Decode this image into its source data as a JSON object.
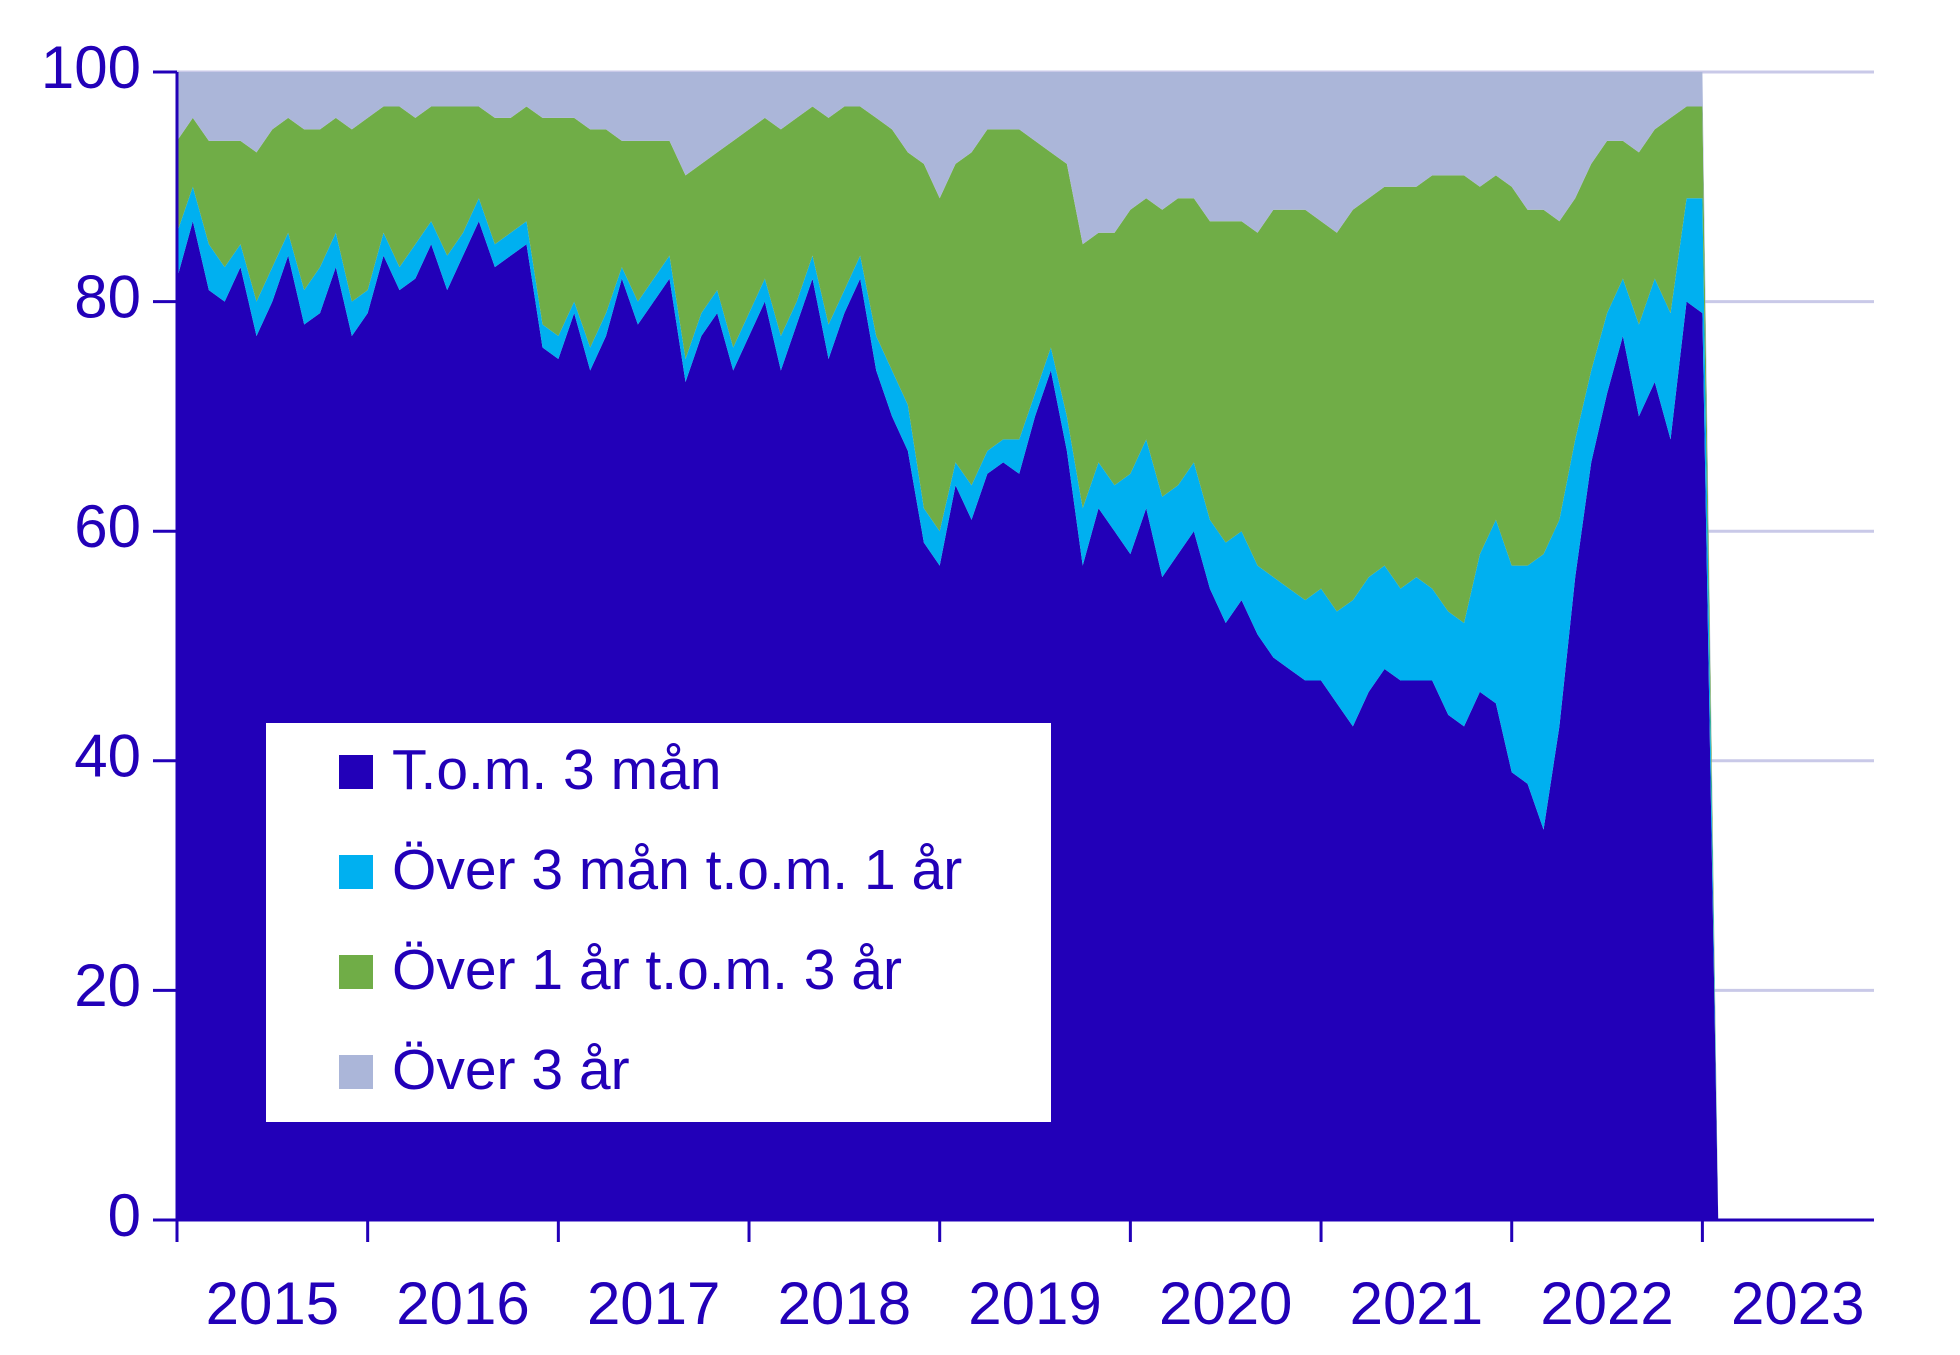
{
  "chart_data": {
    "type": "stacked_area",
    "x": [
      2015,
      2015.083,
      2015.167,
      2015.25,
      2015.333,
      2015.417,
      2015.5,
      2015.583,
      2015.667,
      2015.75,
      2015.833,
      2015.917,
      2016,
      2016.083,
      2016.167,
      2016.25,
      2016.333,
      2016.417,
      2016.5,
      2016.583,
      2016.667,
      2016.75,
      2016.833,
      2016.917,
      2017,
      2017.083,
      2017.167,
      2017.25,
      2017.333,
      2017.417,
      2017.5,
      2017.583,
      2017.667,
      2017.75,
      2017.833,
      2017.917,
      2018,
      2018.083,
      2018.167,
      2018.25,
      2018.333,
      2018.417,
      2018.5,
      2018.583,
      2018.667,
      2018.75,
      2018.833,
      2018.917,
      2019,
      2019.083,
      2019.167,
      2019.25,
      2019.333,
      2019.417,
      2019.5,
      2019.583,
      2019.667,
      2019.75,
      2019.833,
      2019.917,
      2020,
      2020.083,
      2020.167,
      2020.25,
      2020.333,
      2020.417,
      2020.5,
      2020.583,
      2020.667,
      2020.75,
      2020.833,
      2020.917,
      2021,
      2021.083,
      2021.167,
      2021.25,
      2021.333,
      2021.417,
      2021.5,
      2021.583,
      2021.667,
      2021.75,
      2021.833,
      2021.917,
      2022,
      2022.083,
      2022.167,
      2022.25,
      2022.333,
      2022.417,
      2022.5,
      2022.583,
      2022.667,
      2022.75,
      2022.833,
      2022.917,
      2023,
      2023.083
    ],
    "series": [
      {
        "name": "T.o.m. 3 mån",
        "color": "#2200b8",
        "values": [
          82,
          87,
          81,
          80,
          83,
          77,
          80,
          84,
          78,
          79,
          83,
          77,
          79,
          84,
          81,
          82,
          85,
          81,
          84,
          87,
          83,
          84,
          85,
          76,
          75,
          79,
          74,
          77,
          82,
          78,
          80,
          82,
          73,
          77,
          79,
          74,
          77,
          80,
          74,
          78,
          82,
          75,
          79,
          82,
          74,
          70,
          67,
          59,
          57,
          64,
          61,
          65,
          66,
          65,
          70,
          74,
          67,
          57,
          62,
          60,
          58,
          62,
          56,
          58,
          60,
          55,
          52,
          54,
          51,
          49,
          48,
          47,
          47,
          45,
          43,
          46,
          48,
          47,
          47,
          47,
          44,
          43,
          46,
          45,
          39,
          38,
          34,
          43,
          56,
          66,
          72,
          77,
          70,
          73,
          68,
          80,
          79,
          0
        ]
      },
      {
        "name": "Över 3 mån t.o.m. 1 år",
        "color": "#00b0f0",
        "values": [
          4,
          3,
          4,
          3,
          2,
          3,
          3,
          2,
          3,
          4,
          3,
          3,
          2,
          2,
          2,
          3,
          2,
          3,
          2,
          2,
          2,
          2,
          2,
          2,
          2,
          1,
          2,
          2,
          1,
          2,
          2,
          2,
          2,
          2,
          2,
          2,
          2,
          2,
          3,
          2,
          2,
          3,
          2,
          2,
          3,
          4,
          4,
          3,
          3,
          2,
          3,
          2,
          2,
          3,
          2,
          2,
          3,
          5,
          4,
          4,
          7,
          6,
          7,
          6,
          6,
          6,
          7,
          6,
          6,
          7,
          7,
          7,
          8,
          8,
          11,
          10,
          9,
          8,
          9,
          8,
          9,
          9,
          12,
          16,
          18,
          19,
          24,
          18,
          12,
          8,
          7,
          5,
          8,
          9,
          11,
          9,
          10,
          0
        ]
      },
      {
        "name": "Över 1 år t.o.m. 3 år",
        "color": "#70ad47",
        "values": [
          8,
          6,
          9,
          11,
          9,
          13,
          12,
          10,
          14,
          12,
          10,
          15,
          15,
          11,
          14,
          11,
          10,
          13,
          11,
          8,
          11,
          10,
          10,
          18,
          19,
          16,
          19,
          16,
          11,
          14,
          12,
          10,
          16,
          13,
          12,
          18,
          16,
          14,
          18,
          16,
          13,
          18,
          16,
          13,
          19,
          21,
          22,
          30,
          29,
          26,
          29,
          28,
          27,
          27,
          22,
          17,
          22,
          23,
          20,
          22,
          23,
          21,
          25,
          25,
          23,
          26,
          28,
          27,
          29,
          32,
          33,
          34,
          32,
          33,
          34,
          33,
          33,
          35,
          34,
          36,
          38,
          39,
          32,
          30,
          33,
          31,
          30,
          26,
          21,
          18,
          15,
          12,
          15,
          13,
          17,
          8,
          8,
          0
        ]
      },
      {
        "name": "Över 3 år",
        "color": "#abb6d9",
        "values": [
          6,
          4,
          6,
          6,
          6,
          7,
          5,
          4,
          5,
          5,
          4,
          5,
          4,
          3,
          3,
          4,
          3,
          3,
          3,
          3,
          4,
          4,
          3,
          4,
          4,
          4,
          5,
          5,
          6,
          6,
          6,
          6,
          9,
          8,
          7,
          6,
          5,
          4,
          5,
          4,
          3,
          4,
          3,
          3,
          4,
          5,
          7,
          8,
          11,
          8,
          7,
          5,
          5,
          5,
          6,
          7,
          8,
          15,
          14,
          14,
          12,
          11,
          12,
          11,
          11,
          13,
          13,
          13,
          14,
          12,
          12,
          12,
          13,
          14,
          12,
          11,
          10,
          10,
          10,
          9,
          9,
          9,
          10,
          9,
          10,
          12,
          12,
          13,
          11,
          8,
          6,
          6,
          7,
          5,
          4,
          3,
          3,
          0
        ]
      }
    ],
    "xlim": [
      2015,
      2023.9
    ],
    "xticks": [
      2015,
      2016,
      2017,
      2018,
      2019,
      2020,
      2021,
      2022,
      2023
    ],
    "ylim": [
      0,
      100
    ],
    "yticks": [
      0,
      20,
      40,
      60,
      80,
      100
    ],
    "grid": true,
    "legend": "lower left"
  }
}
